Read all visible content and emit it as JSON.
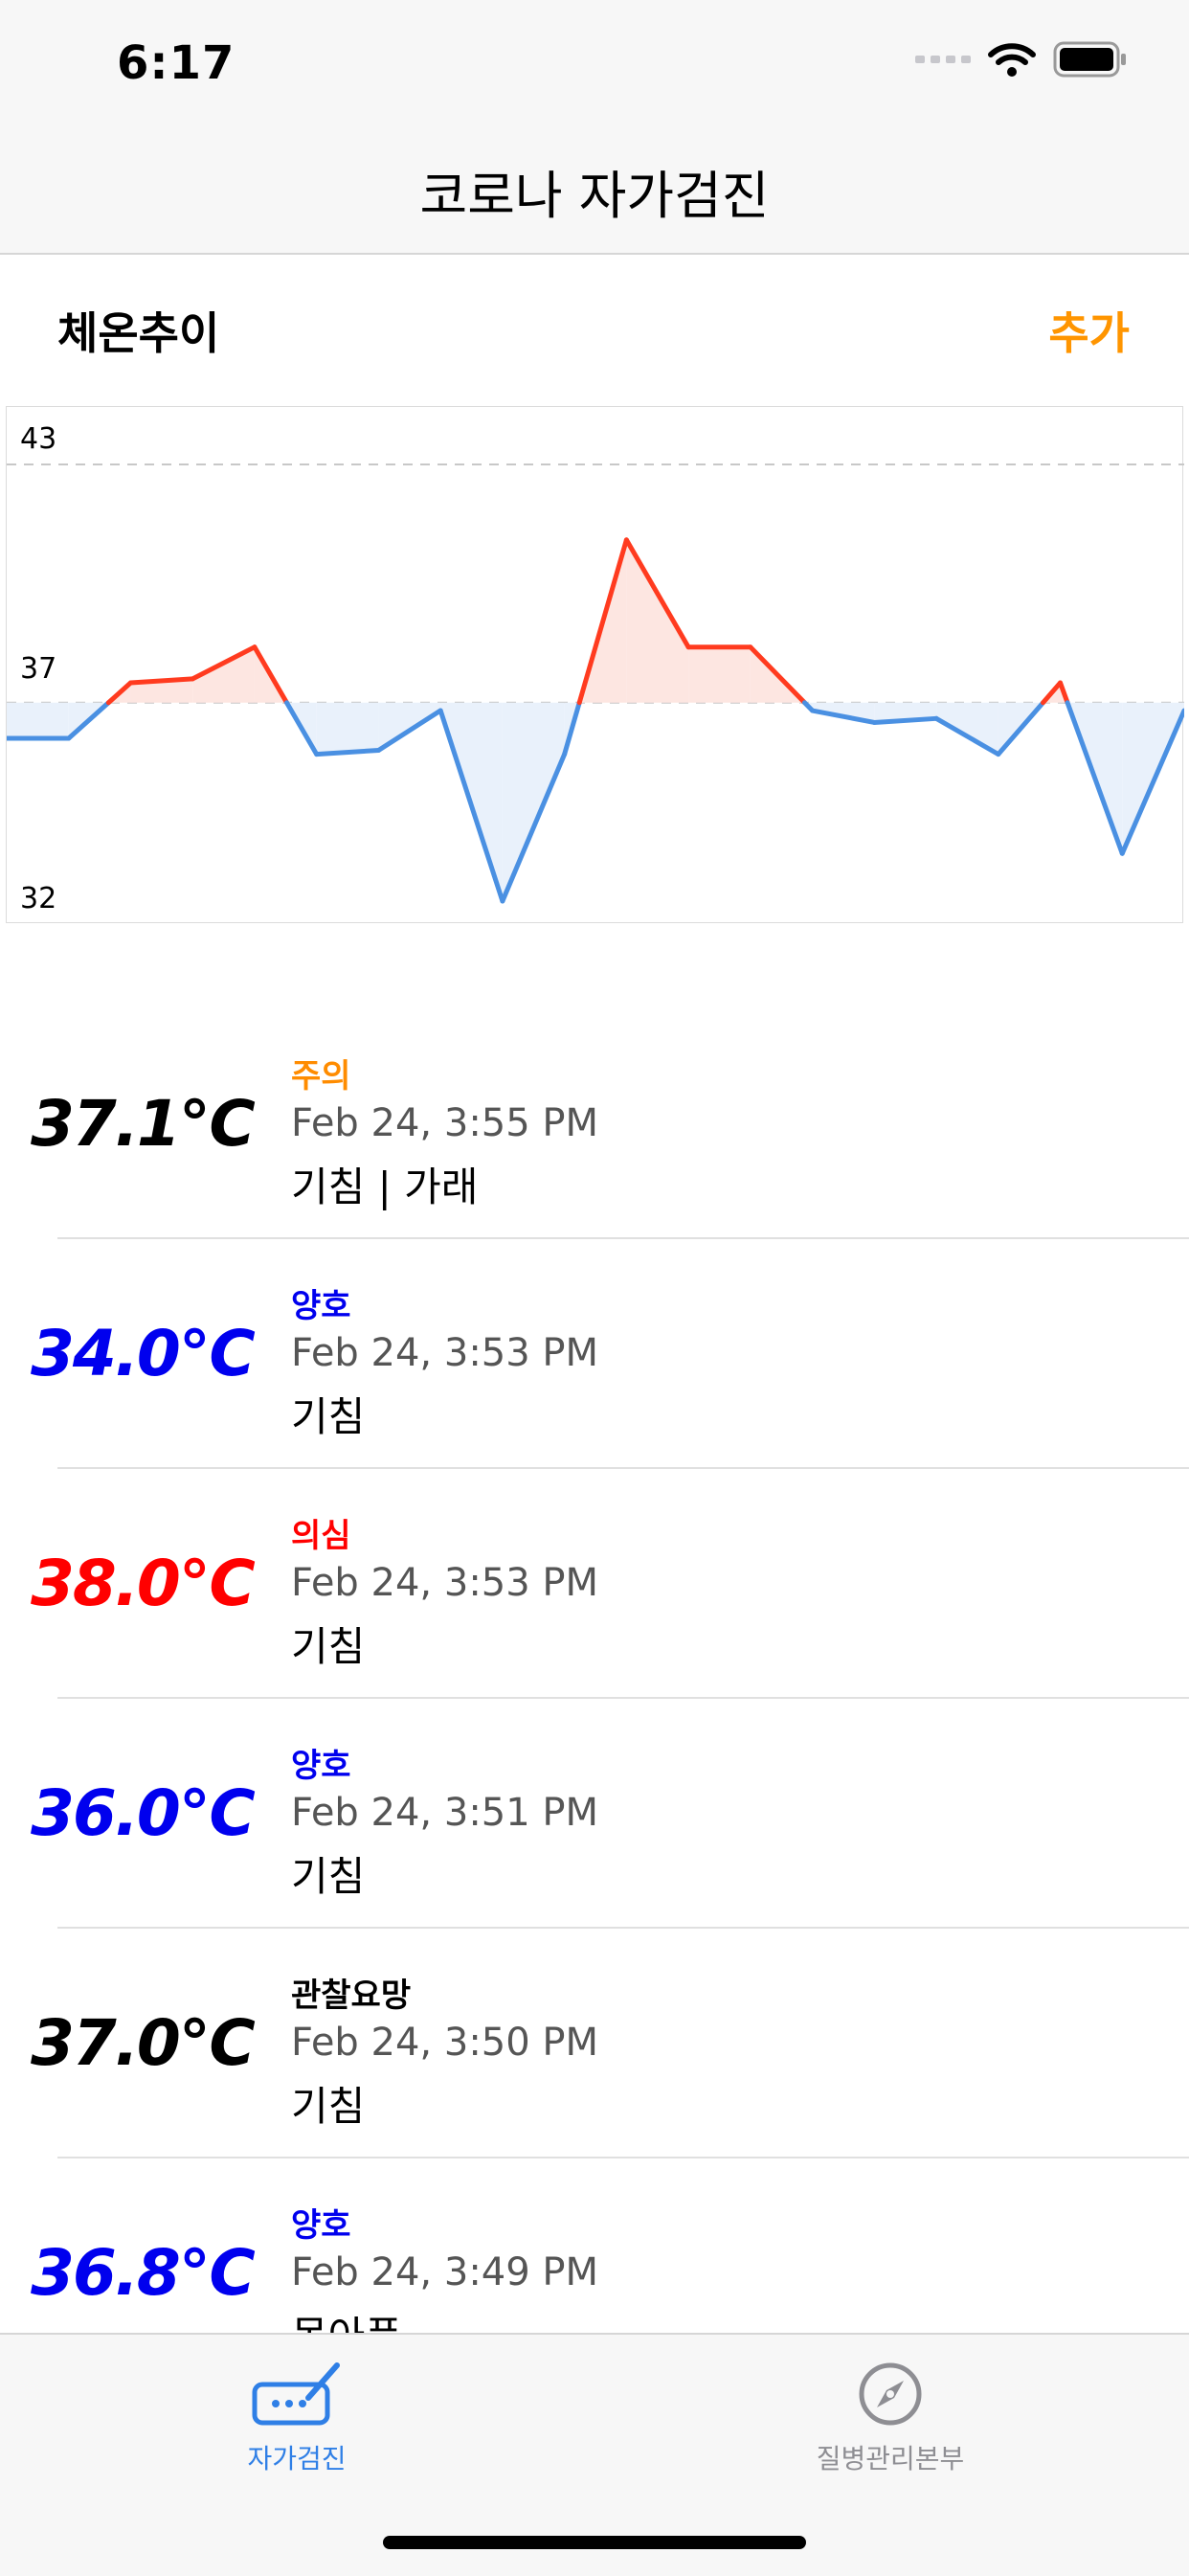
{
  "status_bar": {
    "time": "6:17"
  },
  "nav": {
    "title": "코로나 자가검진"
  },
  "section": {
    "title": "체온추이",
    "add_label": "추가"
  },
  "colors": {
    "high": "#ff3b1f",
    "normal": "#4a90e2",
    "high_fill": "#fde6e1",
    "normal_fill": "#e9f1fb",
    "accent": "#ff9500",
    "tab_active": "#2f7fe6",
    "tab_inactive": "#8e8e93"
  },
  "chart_data": {
    "type": "line",
    "ylim": [
      32,
      43
    ],
    "yticks": [
      "43",
      "37",
      "32"
    ],
    "threshold": 37,
    "values": [
      36.1,
      36.1,
      37.5,
      37.6,
      38.4,
      35.7,
      35.8,
      36.8,
      32,
      35.7,
      41.1,
      38.4,
      38.4,
      36.8,
      36.5,
      36.6,
      35.7,
      37.5,
      33.2,
      36.8
    ]
  },
  "records": [
    {
      "temp": "37.1℃",
      "temp_color": "#000000",
      "status": "주의",
      "status_color": "#ff8c00",
      "date": "Feb 24, 3:55 PM",
      "symptoms": "기침 | 가래"
    },
    {
      "temp": "34.0℃",
      "temp_color": "#0000ee",
      "status": "양호",
      "status_color": "#0000ee",
      "date": "Feb 24, 3:53 PM",
      "symptoms": "기침"
    },
    {
      "temp": "38.0℃",
      "temp_color": "#ff0000",
      "status": "의심",
      "status_color": "#ff0000",
      "date": "Feb 24, 3:53 PM",
      "symptoms": "기침"
    },
    {
      "temp": "36.0℃",
      "temp_color": "#0000ee",
      "status": "양호",
      "status_color": "#0000ee",
      "date": "Feb 24, 3:51 PM",
      "symptoms": "기침"
    },
    {
      "temp": "37.0℃",
      "temp_color": "#000000",
      "status": "관찰요망",
      "status_color": "#000000",
      "date": "Feb 24, 3:50 PM",
      "symptoms": "기침"
    },
    {
      "temp": "36.8℃",
      "temp_color": "#0000ee",
      "status": "양호",
      "status_color": "#0000ee",
      "date": "Feb 24, 3:49 PM",
      "symptoms": "몸아픔"
    }
  ],
  "tabs": [
    {
      "label": "자가검진",
      "icon": "keyboard-pen-icon",
      "active": true
    },
    {
      "label": "질병관리본부",
      "icon": "compass-icon",
      "active": false
    }
  ]
}
